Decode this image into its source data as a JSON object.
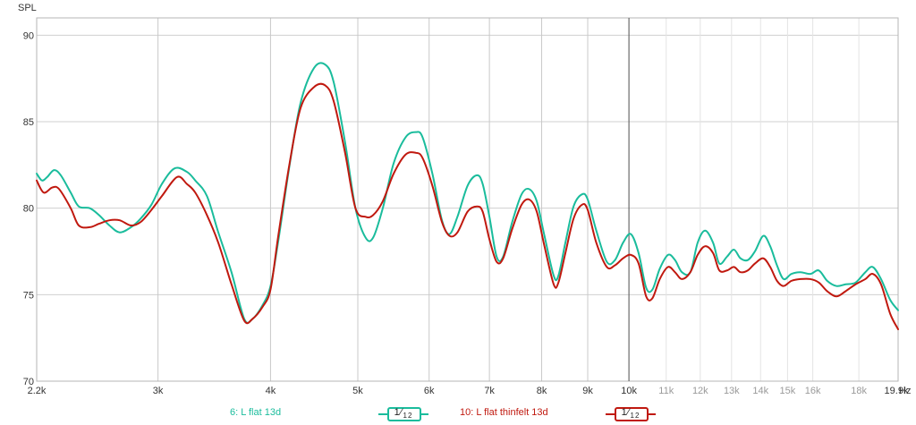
{
  "chart_data": {
    "type": "line",
    "ylabel": "SPL",
    "xunit": "Hz",
    "xscale": "log",
    "xlim": [
      2200,
      19900
    ],
    "ylim": [
      70,
      91
    ],
    "grid": true,
    "legend_placement": "bottom",
    "y_ticks": [
      70,
      75,
      80,
      85,
      90
    ],
    "x_ticks": [
      {
        "value": 2200,
        "label": "2.2k",
        "major": true
      },
      {
        "value": 3000,
        "label": "3k",
        "major": true
      },
      {
        "value": 4000,
        "label": "4k",
        "major": true
      },
      {
        "value": 5000,
        "label": "5k",
        "major": true
      },
      {
        "value": 6000,
        "label": "6k",
        "major": true
      },
      {
        "value": 7000,
        "label": "7k",
        "major": true
      },
      {
        "value": 8000,
        "label": "8k",
        "major": true
      },
      {
        "value": 9000,
        "label": "9k",
        "major": true
      },
      {
        "value": 10000,
        "label": "10k",
        "major": true
      },
      {
        "value": 11000,
        "label": "11k",
        "major": false
      },
      {
        "value": 12000,
        "label": "12k",
        "major": false
      },
      {
        "value": 13000,
        "label": "13k",
        "major": false
      },
      {
        "value": 14000,
        "label": "14k",
        "major": false
      },
      {
        "value": 15000,
        "label": "15k",
        "major": false
      },
      {
        "value": 16000,
        "label": "16k",
        "major": false
      },
      {
        "value": 18000,
        "label": "18k",
        "major": false
      },
      {
        "value": 19900,
        "label": "19.9k",
        "major": true
      }
    ],
    "cursor_x": 10000,
    "series": [
      {
        "name": "6: L flat 13d",
        "color": "#1abc9c",
        "smoothing": "1/12",
        "points": [
          [
            2200,
            82.0
          ],
          [
            2230,
            81.6
          ],
          [
            2260,
            81.8
          ],
          [
            2300,
            82.2
          ],
          [
            2340,
            81.9
          ],
          [
            2400,
            80.9
          ],
          [
            2450,
            80.1
          ],
          [
            2520,
            80.0
          ],
          [
            2580,
            79.6
          ],
          [
            2650,
            79.0
          ],
          [
            2720,
            78.6
          ],
          [
            2800,
            78.9
          ],
          [
            2870,
            79.4
          ],
          [
            2950,
            80.2
          ],
          [
            3030,
            81.4
          ],
          [
            3130,
            82.3
          ],
          [
            3230,
            82.1
          ],
          [
            3300,
            81.6
          ],
          [
            3400,
            80.7
          ],
          [
            3500,
            78.6
          ],
          [
            3620,
            76.3
          ],
          [
            3740,
            73.6
          ],
          [
            3820,
            73.6
          ],
          [
            3920,
            74.4
          ],
          [
            4000,
            75.5
          ],
          [
            4080,
            78.1
          ],
          [
            4200,
            82.5
          ],
          [
            4320,
            86.1
          ],
          [
            4470,
            88.1
          ],
          [
            4600,
            88.3
          ],
          [
            4700,
            87.3
          ],
          [
            4840,
            83.8
          ],
          [
            4970,
            80.0
          ],
          [
            5100,
            78.3
          ],
          [
            5200,
            78.3
          ],
          [
            5330,
            80.0
          ],
          [
            5480,
            82.6
          ],
          [
            5650,
            84.1
          ],
          [
            5800,
            84.4
          ],
          [
            5900,
            84.1
          ],
          [
            6050,
            82.0
          ],
          [
            6200,
            79.3
          ],
          [
            6320,
            78.5
          ],
          [
            6450,
            79.5
          ],
          [
            6620,
            81.3
          ],
          [
            6780,
            81.9
          ],
          [
            6880,
            81.4
          ],
          [
            7000,
            79.5
          ],
          [
            7130,
            77.2
          ],
          [
            7250,
            77.2
          ],
          [
            7420,
            79.2
          ],
          [
            7600,
            80.8
          ],
          [
            7750,
            81.1
          ],
          [
            7900,
            80.4
          ],
          [
            8050,
            78.5
          ],
          [
            8250,
            76.1
          ],
          [
            8350,
            76.1
          ],
          [
            8500,
            78.0
          ],
          [
            8680,
            80.1
          ],
          [
            8870,
            80.8
          ],
          [
            9000,
            80.5
          ],
          [
            9200,
            78.7
          ],
          [
            9450,
            76.9
          ],
          [
            9650,
            77.0
          ],
          [
            9850,
            78.0
          ],
          [
            10050,
            78.5
          ],
          [
            10250,
            77.4
          ],
          [
            10450,
            75.4
          ],
          [
            10620,
            75.3
          ],
          [
            10820,
            76.5
          ],
          [
            11050,
            77.3
          ],
          [
            11250,
            77.0
          ],
          [
            11450,
            76.3
          ],
          [
            11700,
            76.3
          ],
          [
            11920,
            78.0
          ],
          [
            12150,
            78.7
          ],
          [
            12400,
            78.0
          ],
          [
            12600,
            76.8
          ],
          [
            12850,
            77.2
          ],
          [
            13080,
            77.6
          ],
          [
            13300,
            77.1
          ],
          [
            13550,
            77.0
          ],
          [
            13800,
            77.5
          ],
          [
            14100,
            78.4
          ],
          [
            14350,
            77.8
          ],
          [
            14600,
            76.7
          ],
          [
            14850,
            75.9
          ],
          [
            15150,
            76.2
          ],
          [
            15500,
            76.3
          ],
          [
            15900,
            76.2
          ],
          [
            16250,
            76.4
          ],
          [
            16600,
            75.8
          ],
          [
            17000,
            75.5
          ],
          [
            17400,
            75.6
          ],
          [
            17850,
            75.7
          ],
          [
            18300,
            76.3
          ],
          [
            18650,
            76.6
          ],
          [
            19050,
            75.9
          ],
          [
            19500,
            74.7
          ],
          [
            19900,
            74.1
          ]
        ]
      },
      {
        "name": "10: L flat thinfelt 13d",
        "color": "#c0190f",
        "smoothing": "1/12",
        "points": [
          [
            2200,
            81.6
          ],
          [
            2240,
            80.9
          ],
          [
            2290,
            81.2
          ],
          [
            2330,
            81.1
          ],
          [
            2400,
            80.0
          ],
          [
            2450,
            79.0
          ],
          [
            2520,
            78.9
          ],
          [
            2580,
            79.1
          ],
          [
            2650,
            79.3
          ],
          [
            2720,
            79.3
          ],
          [
            2800,
            79.0
          ],
          [
            2870,
            79.2
          ],
          [
            2950,
            79.9
          ],
          [
            3030,
            80.7
          ],
          [
            3150,
            81.8
          ],
          [
            3230,
            81.4
          ],
          [
            3300,
            80.9
          ],
          [
            3400,
            79.6
          ],
          [
            3500,
            78.0
          ],
          [
            3620,
            75.6
          ],
          [
            3740,
            73.5
          ],
          [
            3820,
            73.6
          ],
          [
            3920,
            74.3
          ],
          [
            4000,
            75.3
          ],
          [
            4080,
            78.4
          ],
          [
            4200,
            82.6
          ],
          [
            4320,
            85.8
          ],
          [
            4470,
            87.0
          ],
          [
            4600,
            87.1
          ],
          [
            4700,
            86.2
          ],
          [
            4840,
            83.2
          ],
          [
            4970,
            80.0
          ],
          [
            5100,
            79.5
          ],
          [
            5200,
            79.6
          ],
          [
            5330,
            80.4
          ],
          [
            5480,
            82.0
          ],
          [
            5650,
            83.1
          ],
          [
            5800,
            83.2
          ],
          [
            5900,
            82.9
          ],
          [
            6050,
            81.3
          ],
          [
            6200,
            79.2
          ],
          [
            6320,
            78.4
          ],
          [
            6450,
            78.6
          ],
          [
            6620,
            79.8
          ],
          [
            6780,
            80.1
          ],
          [
            6880,
            79.8
          ],
          [
            7000,
            78.2
          ],
          [
            7130,
            76.9
          ],
          [
            7250,
            77.1
          ],
          [
            7420,
            78.8
          ],
          [
            7600,
            80.2
          ],
          [
            7750,
            80.5
          ],
          [
            7900,
            79.8
          ],
          [
            8050,
            77.9
          ],
          [
            8250,
            75.6
          ],
          [
            8350,
            75.7
          ],
          [
            8500,
            77.4
          ],
          [
            8680,
            79.4
          ],
          [
            8870,
            80.2
          ],
          [
            9000,
            79.9
          ],
          [
            9200,
            78.0
          ],
          [
            9450,
            76.6
          ],
          [
            9650,
            76.7
          ],
          [
            9850,
            77.1
          ],
          [
            10050,
            77.3
          ],
          [
            10250,
            76.8
          ],
          [
            10450,
            74.9
          ],
          [
            10620,
            74.8
          ],
          [
            10820,
            75.9
          ],
          [
            11050,
            76.6
          ],
          [
            11250,
            76.3
          ],
          [
            11450,
            75.9
          ],
          [
            11700,
            76.3
          ],
          [
            11920,
            77.3
          ],
          [
            12150,
            77.8
          ],
          [
            12400,
            77.4
          ],
          [
            12600,
            76.4
          ],
          [
            12850,
            76.4
          ],
          [
            13080,
            76.6
          ],
          [
            13300,
            76.3
          ],
          [
            13550,
            76.4
          ],
          [
            13800,
            76.8
          ],
          [
            14100,
            77.1
          ],
          [
            14350,
            76.6
          ],
          [
            14600,
            75.8
          ],
          [
            14850,
            75.5
          ],
          [
            15150,
            75.8
          ],
          [
            15500,
            75.9
          ],
          [
            15900,
            75.9
          ],
          [
            16250,
            75.7
          ],
          [
            16600,
            75.2
          ],
          [
            17000,
            74.9
          ],
          [
            17400,
            75.2
          ],
          [
            17850,
            75.6
          ],
          [
            18300,
            75.9
          ],
          [
            18650,
            76.2
          ],
          [
            19050,
            75.6
          ],
          [
            19500,
            73.9
          ],
          [
            19900,
            73.0
          ]
        ]
      }
    ]
  }
}
